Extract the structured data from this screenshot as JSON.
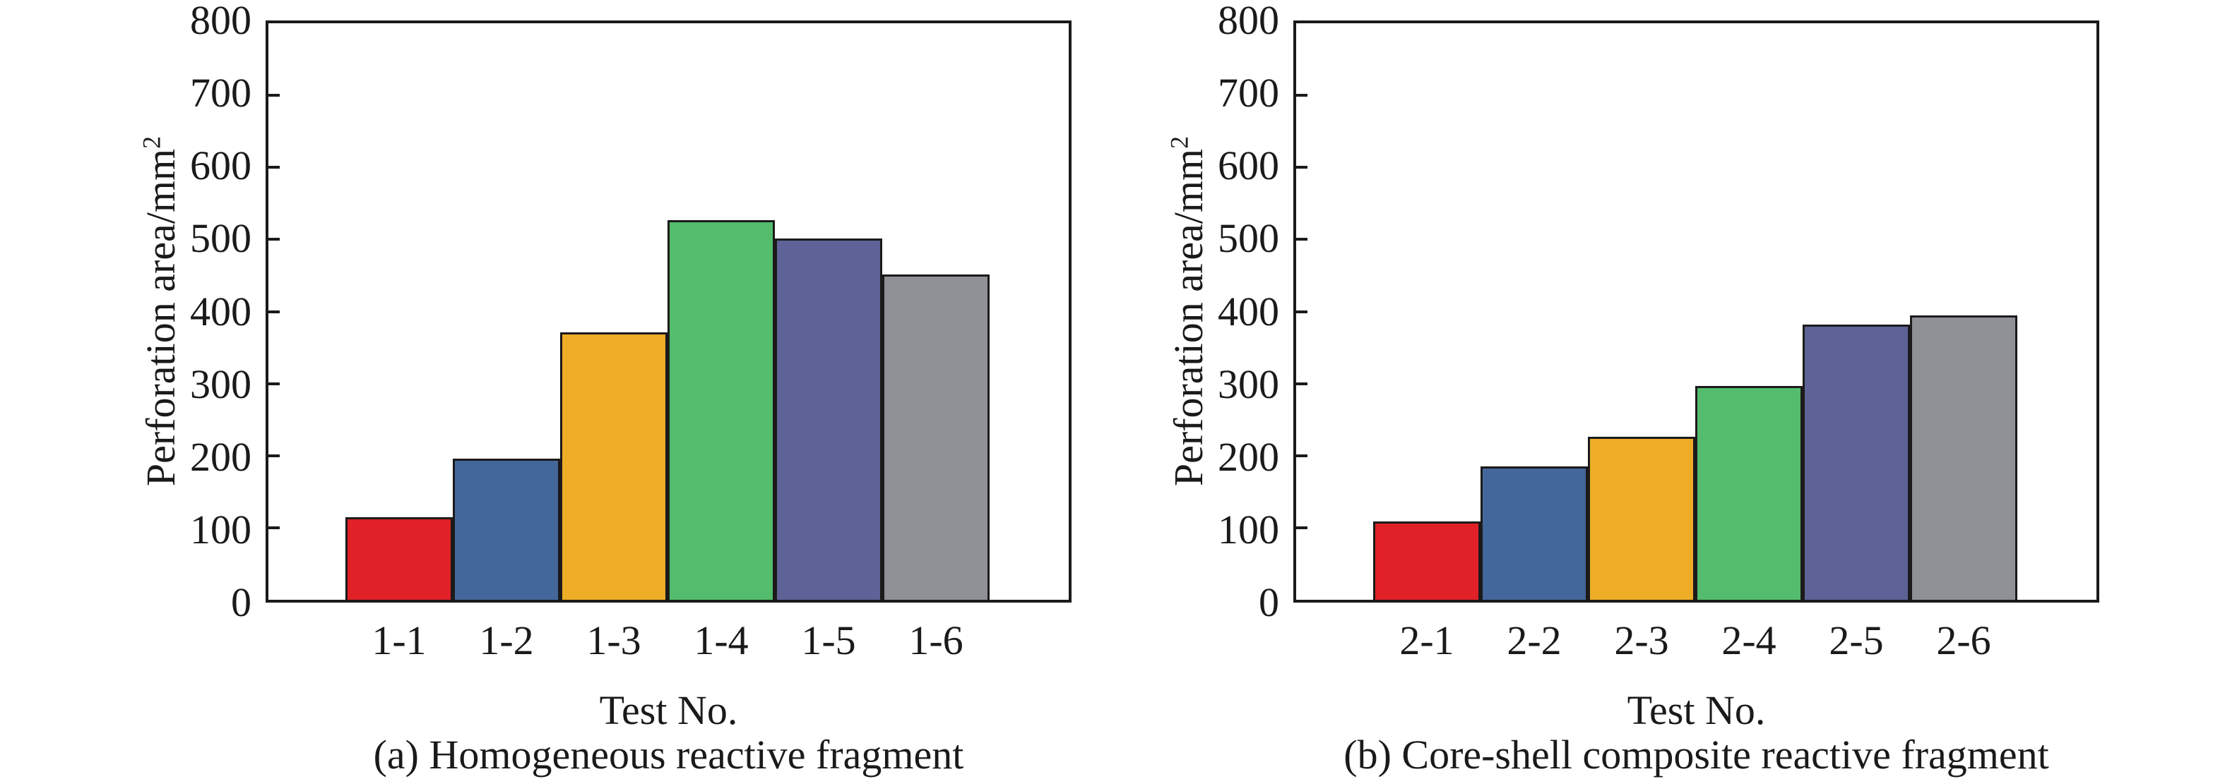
{
  "figure": {
    "background": "#ffffff",
    "axis_color": "#1a1a1a",
    "text_color": "#1a1a1a"
  },
  "chart_data": [
    {
      "type": "bar",
      "title": "(a) Homogeneous reactive fragment",
      "xlabel": "Test No.",
      "ylabel": "Perforation area/mm",
      "ylabel_sup": "2",
      "categories": [
        "1-1",
        "1-2",
        "1-3",
        "1-4",
        "1-5",
        "1-6"
      ],
      "values": [
        115,
        196,
        371,
        527,
        501,
        451
      ],
      "ylim": [
        0,
        800
      ],
      "ytick_step": 100,
      "ytick_labels": [
        "0",
        "100",
        "200",
        "300",
        "400",
        "500",
        "600",
        "700",
        "800"
      ],
      "grid": false,
      "legend": "none",
      "bar_edge_color": "#1c1a1a",
      "bar_colors": [
        "#e02128",
        "#44679b",
        "#eead27",
        "#53bd6d",
        "#5e6296",
        "#909196"
      ]
    },
    {
      "type": "bar",
      "title": "(b) Core-shell composite reactive fragment",
      "xlabel": "Test No.",
      "ylabel": "Perforation area/mm",
      "ylabel_sup": "2",
      "categories": [
        "2-1",
        "2-2",
        "2-3",
        "2-4",
        "2-5",
        "2-6"
      ],
      "values": [
        109,
        185,
        226,
        297,
        382,
        395
      ],
      "ylim": [
        0,
        800
      ],
      "ytick_step": 100,
      "ytick_labels": [
        "0",
        "100",
        "200",
        "300",
        "400",
        "500",
        "600",
        "700",
        "800"
      ],
      "grid": false,
      "legend": "none",
      "bar_edge_color": "#1c1a1a",
      "bar_colors": [
        "#e02128",
        "#44679b",
        "#eead27",
        "#53bd6d",
        "#5e6296",
        "#909196"
      ]
    }
  ]
}
